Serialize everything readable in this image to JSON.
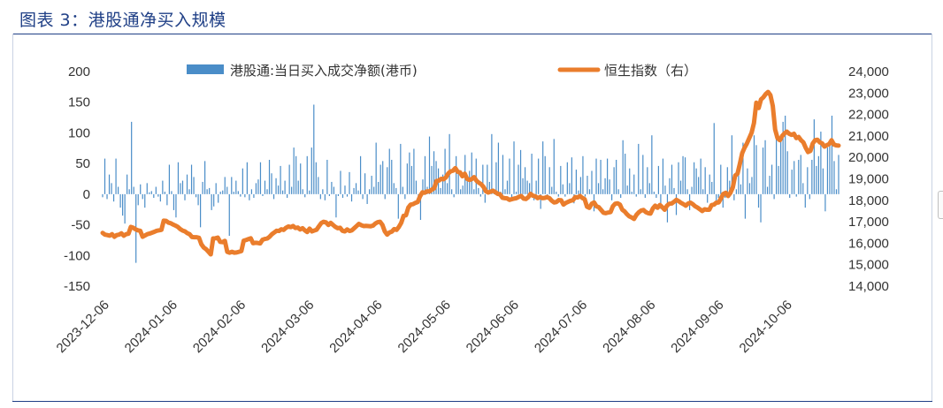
{
  "figure": {
    "title": "图表 3：港股通净买入规模",
    "colors": {
      "title": "#1f3f86",
      "bars": "#4a8dc8",
      "line": "#ea7d2c",
      "text": "#333333"
    }
  },
  "chart_data": {
    "type": "bar+line",
    "legend": {
      "placement": "top",
      "items": [
        {
          "label": "港股通:当日买入成交净额(港币)",
          "marker": "bar",
          "color": "#4a8dc8"
        },
        {
          "label": "恒生指数（右）",
          "marker": "line",
          "color": "#ea7d2c"
        }
      ]
    },
    "y_left": {
      "ticks": [
        "200",
        "150",
        "100",
        "50",
        "0",
        "-50",
        "-100",
        "-150"
      ],
      "range": [
        -150,
        200
      ]
    },
    "y_right": {
      "ticks": [
        "24,000",
        "23,000",
        "22,000",
        "21,000",
        "20,000",
        "19,000",
        "18,000",
        "17,000",
        "16,000",
        "15,000",
        "14,000"
      ],
      "range": [
        14000,
        24000
      ]
    },
    "x_ticks": [
      "2023-12-06",
      "2024-01-06",
      "2024-02-06",
      "2024-03-06",
      "2024-04-06",
      "2024-05-06",
      "2024-06-06",
      "2024-07-06",
      "2024-08-06",
      "2024-09-06",
      "2024-10-06"
    ],
    "grid": false,
    "series": [
      {
        "kind": "bar",
        "axis": "left",
        "values": [
          -5,
          58,
          -8,
          32,
          18,
          -12,
          58,
          12,
          -22,
          -35,
          -48,
          32,
          8,
          118,
          12,
          -112,
          -18,
          16,
          -8,
          -22,
          18,
          3,
          5,
          -6,
          12,
          -4,
          -12,
          22,
          4,
          -18,
          48,
          5,
          -26,
          -38,
          52,
          18,
          22,
          -10,
          32,
          8,
          48,
          28,
          -5,
          -18,
          -54,
          20,
          54,
          8,
          10,
          -26,
          -20,
          18,
          -14,
          4,
          6,
          28,
          12,
          -68,
          28,
          4,
          22,
          5,
          -4,
          42,
          -5,
          52,
          -10,
          8,
          -6,
          18,
          24,
          52,
          -3,
          22,
          8,
          56,
          34,
          -8,
          26,
          14,
          46,
          6,
          22,
          -6,
          48,
          12,
          76,
          62,
          22,
          50,
          8,
          -5,
          62,
          6,
          76,
          146,
          52,
          28,
          -8,
          8,
          -10,
          56,
          -3,
          20,
          12,
          -38,
          -3,
          38,
          -6,
          14,
          -4,
          36,
          -12,
          10,
          18,
          6,
          62,
          -8,
          34,
          -16,
          8,
          30,
          12,
          84,
          20,
          48,
          54,
          -8,
          44,
          74,
          56,
          18,
          10,
          -40,
          82,
          12,
          -8,
          50,
          68,
          46,
          74,
          22,
          -6,
          -42,
          24,
          62,
          12,
          94,
          46,
          70,
          54,
          42,
          10,
          32,
          74,
          18,
          98,
          8,
          -5,
          62,
          40,
          8,
          14,
          64,
          22,
          38,
          68,
          8,
          58,
          10,
          -4,
          48,
          -14,
          48,
          20,
          98,
          6,
          52,
          84,
          4,
          64,
          8,
          22,
          58,
          -6,
          86,
          4,
          48,
          72,
          26,
          44,
          22,
          18,
          66,
          -10,
          22,
          58,
          -24,
          86,
          62,
          -8,
          44,
          12,
          90,
          4,
          -4,
          46,
          16,
          -4,
          52,
          18,
          60,
          -15,
          40,
          6,
          28,
          62,
          -4,
          30,
          8,
          38,
          -28,
          58,
          18,
          56,
          8,
          26,
          58,
          24,
          -10,
          44,
          56,
          8,
          -6,
          88,
          66,
          14,
          42,
          4,
          32,
          -4,
          82,
          8,
          64,
          -6,
          44,
          18,
          96,
          4,
          -6,
          46,
          -24,
          58,
          14,
          -46,
          26,
          48,
          10,
          -34,
          52,
          22,
          62,
          60,
          8,
          -26,
          12,
          52,
          42,
          28,
          58,
          8,
          44,
          -14,
          32,
          20,
          116,
          -18,
          -6,
          48,
          -22,
          -6,
          44,
          22,
          96,
          -10,
          8,
          46,
          16,
          84,
          -40,
          42,
          18,
          28,
          96,
          80,
          -22,
          -46,
          76,
          88,
          12,
          30,
          48,
          -8,
          98,
          46,
          96,
          118,
          128,
          70,
          -6,
          40,
          54,
          -4,
          56,
          64,
          18,
          -22,
          44,
          -8,
          56,
          122,
          46,
          62,
          102,
          42,
          -28,
          76,
          88,
          128,
          54,
          8,
          64
        ],
        "note": "daily net buy, HKD 100 million"
      },
      {
        "kind": "line",
        "name": "恒生指数（右）",
        "axis": "right",
        "values": [
          16480,
          16400,
          16380,
          16350,
          16420,
          16300,
          16380,
          16400,
          16460,
          16350,
          16420,
          16440,
          16760,
          16720,
          16650,
          16600,
          16580,
          16300,
          16360,
          16420,
          16450,
          16490,
          16530,
          16580,
          16600,
          16620,
          17050,
          17040,
          16960,
          16930,
          16870,
          16820,
          16760,
          16660,
          16590,
          16550,
          16470,
          16420,
          16290,
          16280,
          16280,
          16250,
          15950,
          15800,
          15720,
          15600,
          15480,
          16220,
          16230,
          16260,
          16060,
          16050,
          16110,
          15600,
          15560,
          15600,
          15560,
          15570,
          15600,
          15630,
          16120,
          16150,
          16190,
          16230,
          16000,
          16020,
          16010,
          15990,
          16160,
          16200,
          16220,
          16300,
          16420,
          16500,
          16580,
          16570,
          16650,
          16620,
          16720,
          16780,
          16750,
          16800,
          16710,
          16730,
          16640,
          16700,
          16600,
          16520,
          16680,
          16550,
          16590,
          16630,
          16790,
          16940,
          17000,
          16970,
          16850,
          16950,
          16850,
          16760,
          16700,
          16720,
          16580,
          16550,
          16640,
          16570,
          16600,
          16700,
          16800,
          16900,
          16840,
          16800,
          16810,
          16800,
          16790,
          16820,
          16920,
          16980,
          17000,
          16850,
          16550,
          16400,
          16500,
          16540,
          16660,
          16620,
          16760,
          16950,
          17280,
          17300,
          17660,
          17800,
          17820,
          17880,
          17920,
          18190,
          18370,
          18350,
          18420,
          18410,
          18500,
          18560,
          18900,
          18920,
          19000,
          18980,
          19070,
          19250,
          19350,
          19380,
          19500,
          19330,
          19300,
          19120,
          19240,
          19000,
          18950,
          18990,
          19080,
          18910,
          18820,
          18750,
          18620,
          18420,
          18360,
          18400,
          18450,
          18380,
          18300,
          18280,
          18120,
          18100,
          18090,
          18020,
          18050,
          18080,
          18100,
          18160,
          18200,
          18080,
          18060,
          18140,
          18300,
          18210,
          18190,
          18100,
          18150,
          18100,
          18110,
          18150,
          18100,
          17980,
          17900,
          17920,
          18010,
          18000,
          17800,
          17880,
          17930,
          17980,
          18000,
          18150,
          18130,
          18200,
          18110,
          18050,
          17700,
          17650,
          17840,
          17900,
          17720,
          17680,
          17550,
          17420,
          17400,
          17430,
          17450,
          17720,
          17840,
          17860,
          17800,
          17560,
          17480,
          17350,
          17250,
          17200,
          17130,
          17320,
          17440,
          17520,
          17550,
          17450,
          17400,
          17380,
          17620,
          17750,
          17650,
          17780,
          17680,
          17560,
          17750,
          17840,
          17850,
          17930,
          18020,
          17960,
          17880,
          17820,
          17750,
          17850,
          17890,
          17820,
          17720,
          17660,
          17580,
          17500,
          17580,
          17560,
          17560,
          17780,
          17800,
          17890,
          17900,
          18100,
          18300,
          18350,
          18200,
          18350,
          18600,
          19150,
          19240,
          19700,
          20200,
          20450,
          20650,
          20900,
          21150,
          21600,
          22550,
          22300,
          22700,
          22800,
          22950,
          23050,
          22900,
          22400,
          21300,
          20900,
          20800,
          21000,
          21120,
          21200,
          21100,
          21050,
          21100,
          20900,
          20950,
          20800,
          20700,
          20450,
          20250,
          20300,
          20650,
          20800,
          20820,
          20700,
          20650,
          20500,
          20570,
          20620,
          20800,
          20600,
          20560,
          20550
        ]
      }
    ]
  }
}
